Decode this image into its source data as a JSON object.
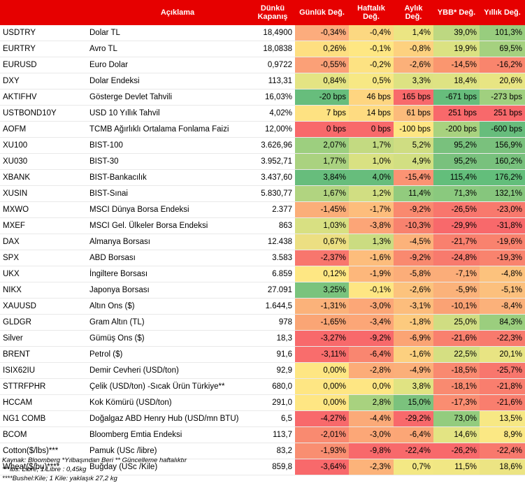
{
  "header": {
    "code": "",
    "description": "Açıklama",
    "close": "Dünkü Kapanış",
    "daily": "Günlük Değ.",
    "weekly": "Haftalık Değ.",
    "monthly": "Aylık Değ.",
    "ytd": "YBB* Değ.",
    "yearly": "Yıllık Değ."
  },
  "rows": [
    {
      "code": "USDTRY",
      "name": "Dolar TL",
      "close": "18,4900",
      "d": "-0,34%",
      "w": "-0,4%",
      "m": "1,4%",
      "y": "39,0%",
      "a": "101,3%",
      "c": [
        "#fcac7d",
        "#fcd881",
        "#ebe583",
        "#bdd881",
        "#98cd7e"
      ]
    },
    {
      "code": "EURTRY",
      "name": "Avro TL",
      "close": "18,0838",
      "d": "0,26%",
      "w": "-0,1%",
      "m": "-0,8%",
      "y": "19,9%",
      "a": "69,5%",
      "c": [
        "#fedf81",
        "#fee783",
        "#fdd17f",
        "#dbe282",
        "#a5d17f"
      ]
    },
    {
      "code": "EURUSD",
      "name": "Euro Dolar",
      "close": "0,9722",
      "d": "-0,55%",
      "w": "-0,2%",
      "m": "-2,6%",
      "y": "-14,5%",
      "a": "-16,2%",
      "c": [
        "#fba077",
        "#fde282",
        "#fbb079",
        "#fa966f",
        "#f9856d"
      ]
    },
    {
      "code": "DXY",
      "name": "Dolar Endeksi",
      "close": "113,31",
      "d": "0,84%",
      "w": "0,5%",
      "m": "3,3%",
      "y": "18,4%",
      "a": "20,6%",
      "c": [
        "#e4e483",
        "#f7e884",
        "#dde282",
        "#dee383",
        "#e8e583"
      ]
    },
    {
      "code": "AKTIFHV",
      "name": "Gösterge Devlet Tahvili",
      "close": "16,03%",
      "d": "-20 bps",
      "w": "46 bps",
      "m": "165 bps",
      "y": "-671 bps",
      "a": "-273 bps",
      "c": [
        "#67bd7c",
        "#fed580",
        "#f8696b",
        "#67bd7c",
        "#a0d07f"
      ]
    },
    {
      "code": "USTBOND10Y",
      "name": "USD 10 Yıllık Tahvil",
      "close": "4,02%",
      "d": "7 bps",
      "w": "14 bps",
      "m": "61 bps",
      "y": "251 bps",
      "a": "251 bps",
      "c": [
        "#fee282",
        "#fedb81",
        "#fcbb7b",
        "#f8696b",
        "#f8696b"
      ]
    },
    {
      "code": "AOFM",
      "name": "TCMB Ağırlıklı Ortalama Fonlama Faizi",
      "close": "12,00%",
      "d": "0 bps",
      "w": "0 bps",
      "m": "-100 bps",
      "y": "-200 bps",
      "a": "-600 bps",
      "c": [
        "#f8696b",
        "#f8696b",
        "#fee683",
        "#a8d27f",
        "#67bd7c"
      ]
    },
    {
      "code": "XU100",
      "name": "BIST-100",
      "close": "3.626,96",
      "d": "2,07%",
      "w": "1,7%",
      "m": "5,2%",
      "y": "95,2%",
      "a": "156,9%",
      "c": [
        "#9dcf7f",
        "#c3da81",
        "#cfdd82",
        "#79c17d",
        "#7ac17d"
      ]
    },
    {
      "code": "XU030",
      "name": "BIST-30",
      "close": "3.952,71",
      "d": "1,77%",
      "w": "1,0%",
      "m": "4,9%",
      "y": "95,2%",
      "a": "160,2%",
      "c": [
        "#aad280",
        "#d9e182",
        "#d2df82",
        "#79c17d",
        "#78c17d"
      ]
    },
    {
      "code": "XBANK",
      "name": "BIST-Bankacılık",
      "close": "3.437,60",
      "d": "3,84%",
      "w": "4,0%",
      "m": "-15,4%",
      "y": "115,4%",
      "a": "176,2%",
      "c": [
        "#67bd7c",
        "#67bd7c",
        "#fb9373",
        "#63be7b",
        "#63be7b"
      ]
    },
    {
      "code": "XUSIN",
      "name": "BIST-Sınai",
      "close": "5.830,77",
      "d": "1,67%",
      "w": "1,2%",
      "m": "11,4%",
      "y": "71,3%",
      "a": "132,1%",
      "c": [
        "#b1d480",
        "#d1de82",
        "#92cb7e",
        "#8ac97e",
        "#86c67d"
      ]
    },
    {
      "code": "MXWO",
      "name": "MSCI Dünya Borsa Endeksi",
      "close": "2.377",
      "d": "-1,45%",
      "w": "-1,7%",
      "m": "-9,2%",
      "y": "-26,5%",
      "a": "-23,0%",
      "c": [
        "#fbae79",
        "#fdbd7c",
        "#f9896f",
        "#f8766d",
        "#f8796d"
      ]
    },
    {
      "code": "MXEF",
      "name": "MSCI Gel. Ülkeler Borsa Endeksi",
      "close": "863",
      "d": "1,03%",
      "w": "-3,8%",
      "m": "-10,3%",
      "y": "-29,9%",
      "a": "-31,8%",
      "c": [
        "#d8e082",
        "#fca577",
        "#f8826e",
        "#f8696b",
        "#f8696b"
      ]
    },
    {
      "code": "DAX",
      "name": "Almanya Borsası",
      "close": "12.438",
      "d": "0,67%",
      "w": "1,3%",
      "m": "-4,5%",
      "y": "-21,7%",
      "a": "-19,6%",
      "c": [
        "#ecdf82",
        "#cbdc81",
        "#fcb27a",
        "#f9806e",
        "#f9826e"
      ]
    },
    {
      "code": "SPX",
      "name": "ABD Borsası",
      "close": "3.583",
      "d": "-2,37%",
      "w": "-1,6%",
      "m": "-9,2%",
      "y": "-24,8%",
      "a": "-19,3%",
      "c": [
        "#f8766d",
        "#fdbd7c",
        "#f9896f",
        "#f87a6d",
        "#f9836e"
      ]
    },
    {
      "code": "UKX",
      "name": "İngiltere Borsası",
      "close": "6.859",
      "d": "0,12%",
      "w": "-1,9%",
      "m": "-5,8%",
      "y": "-7,1%",
      "a": "-4,8%",
      "c": [
        "#fee783",
        "#fdb77b",
        "#fbad79",
        "#fbad79",
        "#fcc27d"
      ]
    },
    {
      "code": "NIKX",
      "name": "Japonya Borsası",
      "close": "27.091",
      "d": "3,25%",
      "w": "-0,1%",
      "m": "-2,6%",
      "y": "-5,9%",
      "a": "-5,1%",
      "c": [
        "#7ac37d",
        "#fee683",
        "#fcc37d",
        "#fbb27a",
        "#fcc07d"
      ]
    },
    {
      "code": "XAUUSD",
      "name": "Altın Ons ($)",
      "close": "1.644,5",
      "d": "-1,31%",
      "w": "-3,0%",
      "m": "-3,1%",
      "y": "-10,1%",
      "a": "-8,4%",
      "c": [
        "#fbb27a",
        "#fca777",
        "#fcbd7c",
        "#faa274",
        "#fbb17a"
      ]
    },
    {
      "code": "GLDGR",
      "name": "Gram Altın (TL)",
      "close": "978",
      "d": "-1,65%",
      "w": "-3,4%",
      "m": "-1,8%",
      "y": "25,0%",
      "a": "84,3%",
      "c": [
        "#faa575",
        "#fca677",
        "#fcca7e",
        "#d0dd82",
        "#9bce7e"
      ]
    },
    {
      "code": "Silver",
      "name": "Gümüş Ons ($)",
      "close": "18,3",
      "d": "-3,27%",
      "w": "-9,2%",
      "m": "-6,9%",
      "y": "-21,6%",
      "a": "-22,3%",
      "c": [
        "#f8696b",
        "#f8696b",
        "#fba474",
        "#f9806e",
        "#f87a6d"
      ]
    },
    {
      "code": "BRENT",
      "name": "Petrol ($)",
      "close": "91,6",
      "d": "-3,11%",
      "w": "-6,4%",
      "m": "-1,6%",
      "y": "22,5%",
      "a": "20,1%",
      "c": [
        "#f96d6c",
        "#f98670",
        "#fcd07f",
        "#d5df82",
        "#e8e483"
      ]
    },
    {
      "code": "ISIX62IU",
      "name": "Demir Cevheri (USD/ton)",
      "close": "92,9",
      "d": "0,00%",
      "w": "-2,8%",
      "m": "-4,9%",
      "y": "-18,5%",
      "a": "-25,7%",
      "c": [
        "#fee683",
        "#fcac78",
        "#fbaf79",
        "#f98970",
        "#f8766d"
      ]
    },
    {
      "code": "STTRFPHR",
      "name": "Çelik (USD/ton) -Sıcak Ürün Türkiye**",
      "close": "680,0",
      "d": "0,00%",
      "w": "0,0%",
      "m": "3,8%",
      "y": "-18,1%",
      "a": "-21,8%",
      "c": [
        "#fee683",
        "#fee683",
        "#e0e382",
        "#f98a70",
        "#f97e6e"
      ]
    },
    {
      "code": "HCCAM",
      "name": "Kok Kömürü (USD/ton)",
      "close": "291,0",
      "d": "0,00%",
      "w": "2,8%",
      "m": "15,0%",
      "y": "-17,3%",
      "a": "-21,6%",
      "c": [
        "#fee683",
        "#a8d27f",
        "#7bc27d",
        "#fa8d71",
        "#f97e6e"
      ]
    },
    {
      "code": "NG1 COMB",
      "name": "Doğalgaz ABD Henry Hub (USD/mn BTU)",
      "close": "6,5",
      "d": "-4,27%",
      "w": "-4,4%",
      "m": "-29,2%",
      "y": "73,0%",
      "a": "13,5%",
      "c": [
        "#f8696b",
        "#fbaa78",
        "#f8696b",
        "#93cc7e",
        "#f7e884"
      ]
    },
    {
      "code": "BCOM",
      "name": "Bloomberg Emtia Endeksi",
      "close": "113,7",
      "d": "-2,01%",
      "w": "-3,0%",
      "m": "-6,4%",
      "y": "14,6%",
      "a": "8,9%",
      "c": [
        "#f98a70",
        "#fca777",
        "#fba676",
        "#e3e483",
        "#fbe884"
      ]
    },
    {
      "code": "Cotton($/lbs)***",
      "name": "Pamuk (USc /libre)",
      "close": "83,2",
      "d": "-1,93%",
      "w": "-9,8%",
      "m": "-22,4%",
      "y": "-26,2%",
      "a": "-22,4%",
      "c": [
        "#f98e71",
        "#f8696b",
        "#f8696b",
        "#f8696b",
        "#f8796d"
      ]
    },
    {
      "code": "Wheat($/bu)****",
      "name": "Buğday (USc /Kile)",
      "close": "859,8",
      "d": "-3,64%",
      "w": "-2,3%",
      "m": "0,7%",
      "y": "11,5%",
      "a": "18,6%",
      "c": [
        "#f8696b",
        "#fcb37a",
        "#f3e884",
        "#f1e784",
        "#ece483"
      ]
    }
  ],
  "footer": {
    "line1": "Kaynak: Bloomberg *Yılbaşından Beri  ** Güncelleme haftalıktır",
    "line2": "***lbs: Libre; 1 Libre : 0,45kg",
    "line3": "****Bushel:Kile; 1 Kile: yaklaşık 27,2 kg"
  }
}
